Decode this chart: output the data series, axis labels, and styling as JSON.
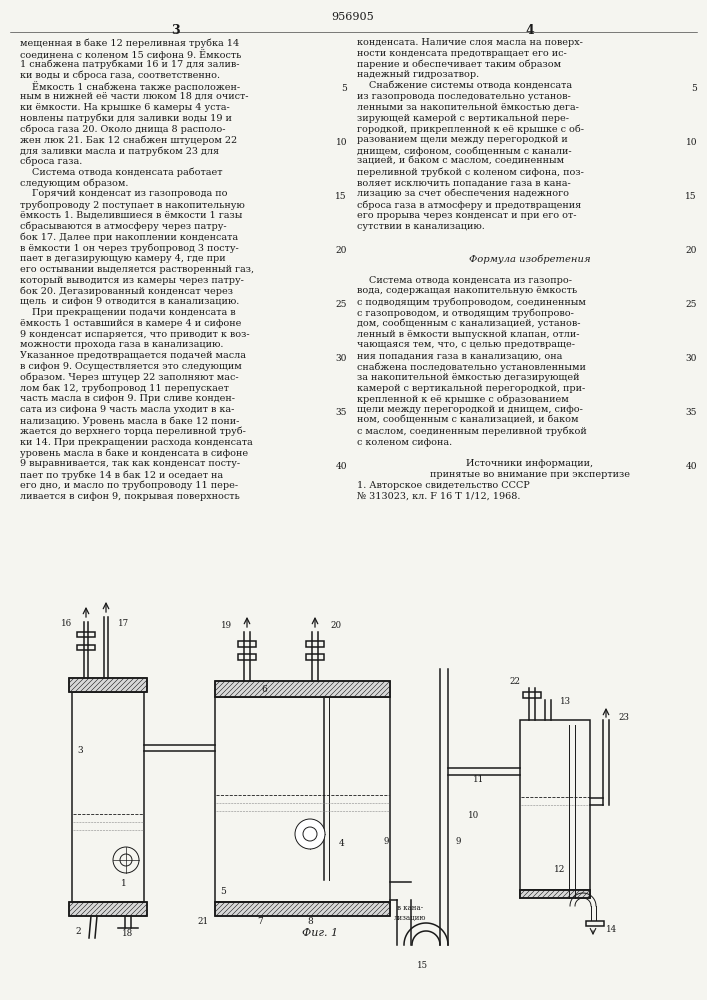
{
  "patent_number": "956905",
  "left_col_text": [
    "мещенная в баке 12 переливная трубка 14",
    "соединена с коленом 15 сифона 9. Ёмкость",
    "1 снабжена патрубками 16 и 17 для залив-",
    "ки воды и сброса газа, соответственно.",
    "    Ёмкость 1 снабжена также расположен-",
    "ным в нижней её части люком 18 для очист-",
    "ки ёмкости. На крышке 6 камеры 4 уста-",
    "новлены патрубки для заливки воды 19 и",
    "сброса газа 20. Около днища 8 располо-",
    "жен люк 21. Бак 12 снабжен штуцером 22",
    "для заливки масла и патрубком 23 для",
    "сброса газа.",
    "    Система отвода конденсата работает",
    "следующим образом.",
    "    Горячий конденсат из газопровода по",
    "трубопроводу 2 поступает в накопительную",
    "ёмкость 1. Выделившиеся в ёмкости 1 газы",
    "сбрасываются в атмосферу через патру-",
    "бок 17. Далее при накоплении конденсата",
    "в ёмкости 1 он через трубопровод 3 посту-",
    "пает в дегазирующую камеру 4, где при",
    "его остывании выделяется растворенный газ,",
    "который выводится из камеры через патру-",
    "бок 20. Дегазированный конденсат через",
    "щель  и сифон 9 отводится в канализацию.",
    "    При прекращении подачи конденсата в",
    "ёмкость 1 оставшийся в камере 4 и сифоне",
    "9 конденсат испаряется, что приводит к воз-",
    "можности прохода газа в канализацию.",
    "Указанное предотвращается подачей масла",
    "в сифон 9. Осуществляется это следующим",
    "образом. Через штуцер 22 заполняют мас-",
    "лом бак 12, трубопровод 11 перепускает",
    "часть масла в сифон 9. При сливе конден-",
    "сата из сифона 9 часть масла уходит в ка-",
    "нализацию. Уровень масла в баке 12 пони-",
    "жается до верхнего торца переливной труб-",
    "ки 14. При прекращении расхода конденсата",
    "уровень масла в баке и конденсата в сифоне",
    "9 выравнивается, так как конденсат посту-",
    "пает по трубке 14 в бак 12 и оседает на",
    "его дно, и масло по трубопроводу 11 пере-",
    "ливается в сифон 9, покрывая поверхность"
  ],
  "right_col_text": [
    "конденсата. Наличие слоя масла на поверх-",
    "ности конденсата предотвращает его ис-",
    "парение и обеспечивает таким образом",
    "надежный гидрозатвор.",
    "    Снабжение системы отвода конденсата",
    "из газопровода последовательно установ-",
    "ленными за накопительной ёмкостью дега-",
    "зирующей камерой с вертикальной пере-",
    "городкой, прикрепленной к её крышке с об-",
    "разованием щели между перегородкой и",
    "днищем, сифоном, сообщенным с канали-",
    "зацией, и баком с маслом, соединенным",
    "переливной трубкой с коленом сифона, поз-",
    "воляет исключить попадание газа в кана-",
    "лизацию за счет обеспечения надежного",
    "сброса газа в атмосферу и предотвращения",
    "его прорыва через конденсат и при его от-",
    "сутствии в канализацию.",
    "",
    "",
    "Формула изобретения",
    "",
    "    Система отвода конденсата из газопро-",
    "вода, содержащая накопительную ёмкость",
    "с подводящим трубопроводом, соединенным",
    "с газопроводом, и отводящим трубопрово-",
    "дом, сообщенным с канализацией, установ-",
    "ленный в ёмкости выпускной клапан, отли-",
    "чающаяся тем, что, с целью предотвраще-",
    "ния попадания газа в канализацию, она",
    "снабжена последовательно установленными",
    "за накопительной ёмкостью дегазирующей",
    "камерой с вертикальной перегородкой, при-",
    "крепленной к её крышке с образованием",
    "щели между перегородкой и днищем, сифо-",
    "ном, сообщенным с канализацией, и баком",
    "с маслом, соединенным переливной трубкой",
    "с коленом сифона.",
    "",
    "Источники информации,",
    "принятые во внимание при экспертизе",
    "1. Авторское свидетельство СССР",
    "№ 313023, кл. F 16 T 1/12, 1968."
  ],
  "fig_caption": "Фиг. 1",
  "background_color": "#f5f5f0"
}
